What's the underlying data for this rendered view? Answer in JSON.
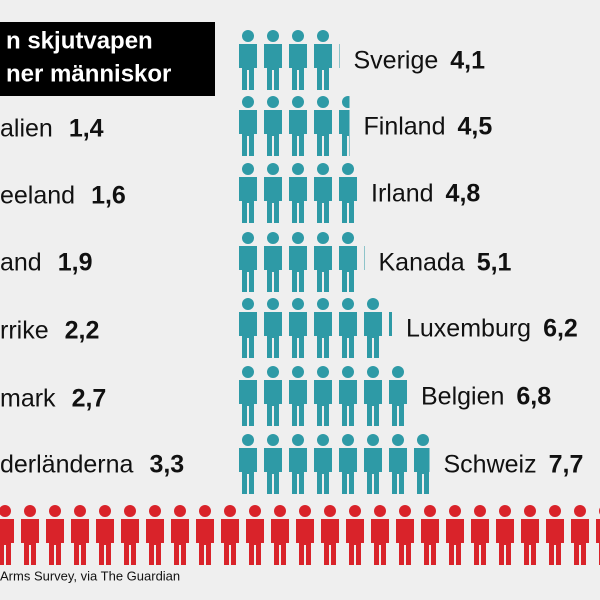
{
  "chart_data": [
    {
      "type": "pictogram",
      "color": "#2e9aa6",
      "title_lines": [
        "n skjutvapen",
        "ner människor"
      ],
      "categories": [
        "alien",
        "eeland",
        "and",
        "rrike",
        "mark",
        "derländerna"
      ],
      "values": [
        1.4,
        1.6,
        1.9,
        2.2,
        2.7,
        3.3
      ],
      "value_labels": [
        "1,4",
        "1,6",
        "1,9",
        "2,2",
        "2,7",
        "3,3"
      ]
    },
    {
      "type": "pictogram",
      "color": "#2e9aa6",
      "categories": [
        "Sverige",
        "Finland",
        "Irland",
        "Kanada",
        "Luxemburg",
        "Belgien",
        "Schweiz"
      ],
      "values": [
        4.1,
        4.5,
        4.8,
        5.1,
        6.2,
        6.8,
        7.7
      ],
      "value_labels": [
        "4,1",
        "4,5",
        "4,8",
        "5,1",
        "6,2",
        "6,8",
        "7,7"
      ]
    }
  ],
  "source": "Arms Survey, via The Guardian"
}
